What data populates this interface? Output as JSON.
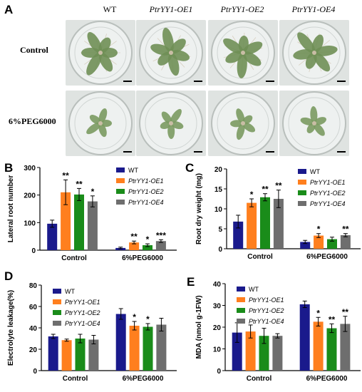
{
  "panel_a": {
    "letter": "A",
    "columns": [
      "WT",
      "PtrYY1-OE1",
      "PtrYY1-OE2",
      "PtrYY1-OE4"
    ],
    "rows": [
      "Control",
      "6%PEG6000"
    ]
  },
  "colors": {
    "WT": "#1a1a8c",
    "PtrYY1-OE1": "#ff7f1e",
    "PtrYY1-OE2": "#1a8c1a",
    "PtrYY1-OE4": "#6e6e6e"
  },
  "chart_data": [
    {
      "panel": "B",
      "type": "bar",
      "ylabel": "Lateral root number",
      "ylim": [
        0,
        300
      ],
      "yticks": [
        0,
        100,
        200,
        300
      ],
      "categories": [
        "Control",
        "6%PEG6000"
      ],
      "legend_position": "top-right",
      "series": [
        {
          "name": "WT",
          "values": [
            96,
            8
          ],
          "errors": [
            13,
            3
          ],
          "sig": [
            "",
            ""
          ]
        },
        {
          "name": "PtrYY1-OE1",
          "values": [
            210,
            28
          ],
          "errors": [
            45,
            5
          ],
          "sig": [
            "**",
            "**"
          ]
        },
        {
          "name": "PtrYY1-OE2",
          "values": [
            202,
            18
          ],
          "errors": [
            22,
            5
          ],
          "sig": [
            "**",
            "*"
          ]
        },
        {
          "name": "PtrYY1-OE4",
          "values": [
            177,
            33
          ],
          "errors": [
            20,
            5
          ],
          "sig": [
            "*",
            "***"
          ]
        }
      ]
    },
    {
      "panel": "C",
      "type": "bar",
      "ylabel": "Root dry weight (mg)",
      "ylim": [
        0,
        20
      ],
      "yticks": [
        0,
        5,
        10,
        15,
        20
      ],
      "categories": [
        "Control",
        "6%PEG6000"
      ],
      "legend_position": "top-right",
      "series": [
        {
          "name": "WT",
          "values": [
            6.8,
            1.7
          ],
          "errors": [
            1.6,
            0.4
          ],
          "sig": [
            "",
            ""
          ]
        },
        {
          "name": "PtrYY1-OE1",
          "values": [
            11.5,
            3.3
          ],
          "errors": [
            1.0,
            0.5
          ],
          "sig": [
            "*",
            "*"
          ]
        },
        {
          "name": "PtrYY1-OE2",
          "values": [
            12.9,
            2.4
          ],
          "errors": [
            0.9,
            0.5
          ],
          "sig": [
            "**",
            ""
          ]
        },
        {
          "name": "PtrYY1-OE4",
          "values": [
            12.5,
            3.4
          ],
          "errors": [
            2.2,
            0.4
          ],
          "sig": [
            "**",
            "**"
          ]
        }
      ]
    },
    {
      "panel": "D",
      "type": "bar",
      "ylabel": "Electrolyte leakage(%)",
      "ylim": [
        0,
        80
      ],
      "yticks": [
        0,
        20,
        40,
        60,
        80
      ],
      "categories": [
        "Control",
        "6%PEG6000"
      ],
      "legend_position": "top-left",
      "series": [
        {
          "name": "WT",
          "values": [
            32,
            53
          ],
          "errors": [
            2,
            5
          ],
          "sig": [
            "",
            ""
          ]
        },
        {
          "name": "PtrYY1-OE1",
          "values": [
            28.5,
            42
          ],
          "errors": [
            1,
            4
          ],
          "sig": [
            "",
            "*"
          ]
        },
        {
          "name": "PtrYY1-OE2",
          "values": [
            30,
            41
          ],
          "errors": [
            4,
            3
          ],
          "sig": [
            "",
            "*"
          ]
        },
        {
          "name": "PtrYY1-OE4",
          "values": [
            29,
            43
          ],
          "errors": [
            4,
            6
          ],
          "sig": [
            "",
            ""
          ]
        }
      ]
    },
    {
      "panel": "E",
      "type": "bar",
      "ylabel": "MDA (nmol g-1FW)",
      "ylim": [
        0,
        40
      ],
      "yticks": [
        0,
        10,
        20,
        30,
        40
      ],
      "categories": [
        "Control",
        "6%PEG6000"
      ],
      "legend_position": "top-left",
      "series": [
        {
          "name": "WT",
          "values": [
            17.5,
            30.5
          ],
          "errors": [
            4.5,
            1.5
          ],
          "sig": [
            "",
            ""
          ]
        },
        {
          "name": "PtrYY1-OE1",
          "values": [
            18,
            22.5
          ],
          "errors": [
            3,
            2
          ],
          "sig": [
            "",
            "*"
          ]
        },
        {
          "name": "PtrYY1-OE2",
          "values": [
            16,
            19.5
          ],
          "errors": [
            3.5,
            2
          ],
          "sig": [
            "",
            "**"
          ]
        },
        {
          "name": "PtrYY1-OE4",
          "values": [
            16,
            21.5
          ],
          "errors": [
            1,
            3.5
          ],
          "sig": [
            "",
            "**"
          ]
        }
      ]
    }
  ]
}
